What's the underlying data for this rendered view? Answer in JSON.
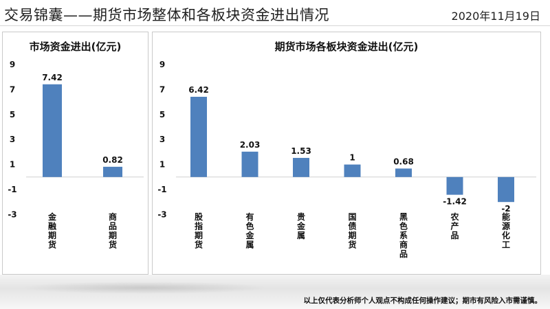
{
  "header": {
    "title": "交易锦囊——期货市场整体和各板块资金进出情况",
    "date": "2020年11月19日"
  },
  "chart_data": [
    {
      "type": "bar",
      "title": "市场资金进出(亿元)",
      "categories": [
        "金融期货",
        "商品期货"
      ],
      "values": [
        7.42,
        0.82
      ],
      "value_labels": [
        "7.42",
        "0.82"
      ],
      "yticks": [
        "9",
        "7",
        "5",
        "3",
        "1",
        "-1",
        "-3"
      ],
      "ylim": [
        -3,
        9
      ],
      "grid": false,
      "bar_color": "#4f81bd"
    },
    {
      "type": "bar",
      "title": "期货市场各板块资金进出(亿元)",
      "categories": [
        "股指期货",
        "有色金属",
        "贵金属",
        "国债期货",
        "黑色系商品",
        "农产品",
        "能源化工"
      ],
      "values": [
        6.42,
        2.03,
        1.53,
        1,
        0.68,
        -1.42,
        -2
      ],
      "value_labels": [
        "6.42",
        "2.03",
        "1.53",
        "1",
        "0.68",
        "-1.42",
        "-2"
      ],
      "yticks": [
        "9",
        "7",
        "5",
        "3",
        "1",
        "-1",
        "-3"
      ],
      "ylim": [
        -3,
        9
      ],
      "grid": false,
      "bar_color": "#4f81bd"
    }
  ],
  "footer": {
    "disclaimer": "以上仅代表分析师个人观点不构成任何操作建议；期市有风险入市需谨慎。"
  }
}
